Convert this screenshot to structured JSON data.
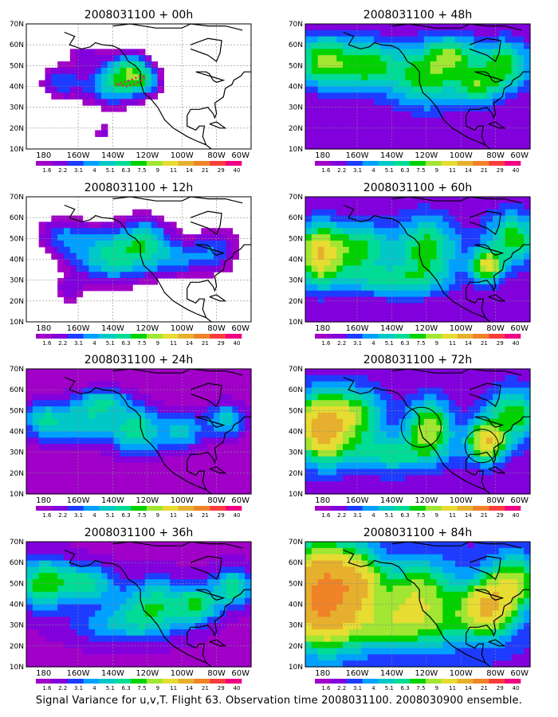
{
  "footer": "Signal Variance for u,v,T. Flight 63. Observation time 2008031100. 2008030900 ensemble.",
  "chart_data": {
    "type": "heatmap",
    "panels": [
      {
        "title": "2008031100 + 00h",
        "field": "f00"
      },
      {
        "title": "2008031100 + 48h",
        "field": "f48"
      },
      {
        "title": "2008031100 + 12h",
        "field": "f12"
      },
      {
        "title": "2008031100 + 60h",
        "field": "f60"
      },
      {
        "title": "2008031100 + 24h",
        "field": "f24"
      },
      {
        "title": "2008031100 + 72h",
        "field": "f72"
      },
      {
        "title": "2008031100 + 36h",
        "field": "f36"
      },
      {
        "title": "2008031100 + 84h",
        "field": "f84"
      }
    ],
    "x_ticks": [
      "180",
      "160W",
      "140W",
      "120W",
      "100W",
      "80W",
      "60W"
    ],
    "y_ticks": [
      "70N",
      "60N",
      "50N",
      "40N",
      "30N",
      "20N",
      "10N"
    ],
    "xlim": [
      -190,
      -60
    ],
    "ylim": [
      10,
      70
    ],
    "colorbar": {
      "levels": [
        "1.6",
        "2.2",
        "3.1",
        "4",
        "5.1",
        "6.3",
        "7.5",
        "9",
        "11",
        "14",
        "21",
        "29",
        "40"
      ],
      "colors": [
        "#a000c8",
        "#8200dc",
        "#1e3cff",
        "#00a0ff",
        "#00c8c8",
        "#00dc96",
        "#00d200",
        "#a0e632",
        "#e6dc32",
        "#e6af2d",
        "#f08228",
        "#fa3c3c",
        "#f00082"
      ]
    },
    "fields": {
      "f00": {
        "base": 0,
        "blobs": [
          [
            -170,
            42,
            9,
            6,
            3.6
          ],
          [
            -140,
            40,
            12,
            7,
            5.5
          ],
          [
            -130,
            48,
            8,
            6,
            6.5
          ],
          [
            -120,
            42,
            6,
            5,
            3.5
          ],
          [
            -155,
            55,
            8,
            4,
            2.5
          ],
          [
            -145,
            18,
            4,
            3,
            2.4
          ]
        ]
      },
      "f12": {
        "base": 0.3,
        "blobs": [
          [
            -140,
            42,
            18,
            9,
            6.5
          ],
          [
            -120,
            50,
            10,
            8,
            4
          ],
          [
            -170,
            52,
            10,
            6,
            3
          ],
          [
            -100,
            40,
            12,
            6,
            3
          ],
          [
            -80,
            45,
            10,
            8,
            3
          ],
          [
            -165,
            25,
            6,
            4,
            2.4
          ]
        ]
      },
      "f24": {
        "base": 1.6,
        "blobs": [
          [
            -155,
            45,
            15,
            7,
            4.5
          ],
          [
            -125,
            40,
            10,
            8,
            5
          ],
          [
            -100,
            40,
            8,
            6,
            4
          ],
          [
            -180,
            45,
            8,
            6,
            4
          ],
          [
            -75,
            45,
            8,
            6,
            4
          ],
          [
            -145,
            55,
            10,
            4,
            3.5
          ]
        ]
      },
      "f36": {
        "base": 2.0,
        "blobs": [
          [
            -180,
            50,
            10,
            8,
            6.5
          ],
          [
            -155,
            50,
            10,
            6,
            5
          ],
          [
            -115,
            40,
            15,
            8,
            5
          ],
          [
            -90,
            40,
            8,
            6,
            4.5
          ],
          [
            -70,
            48,
            8,
            6,
            5
          ],
          [
            -135,
            30,
            20,
            6,
            3
          ]
        ]
      },
      "f48": {
        "base": 2.2,
        "blobs": [
          [
            -180,
            52,
            10,
            8,
            7
          ],
          [
            -155,
            50,
            12,
            8,
            6
          ],
          [
            -120,
            45,
            15,
            10,
            6
          ],
          [
            -90,
            40,
            8,
            6,
            5
          ],
          [
            -75,
            50,
            10,
            8,
            6
          ],
          [
            -105,
            55,
            10,
            6,
            5
          ]
        ]
      },
      "f60": {
        "base": 2.4,
        "blobs": [
          [
            -182,
            42,
            8,
            9,
            11
          ],
          [
            -160,
            45,
            12,
            8,
            6
          ],
          [
            -120,
            45,
            12,
            10,
            6
          ],
          [
            -85,
            37,
            6,
            5,
            9
          ],
          [
            -70,
            50,
            10,
            8,
            6
          ],
          [
            -140,
            30,
            20,
            5,
            4
          ]
        ]
      },
      "f72": {
        "base": 2.6,
        "blobs": [
          [
            -180,
            42,
            10,
            10,
            14
          ],
          [
            -160,
            48,
            10,
            8,
            6
          ],
          [
            -118,
            42,
            8,
            8,
            8
          ],
          [
            -85,
            35,
            7,
            6,
            11
          ],
          [
            -70,
            48,
            10,
            8,
            6
          ],
          [
            -140,
            30,
            20,
            6,
            4.5
          ]
        ]
      },
      "f84": {
        "base": 3.0,
        "blobs": [
          [
            -180,
            45,
            12,
            14,
            20
          ],
          [
            -160,
            50,
            10,
            10,
            9
          ],
          [
            -125,
            45,
            15,
            10,
            7
          ],
          [
            -85,
            38,
            10,
            8,
            11
          ],
          [
            -70,
            50,
            10,
            8,
            8
          ],
          [
            -140,
            30,
            30,
            8,
            6
          ]
        ]
      }
    }
  }
}
